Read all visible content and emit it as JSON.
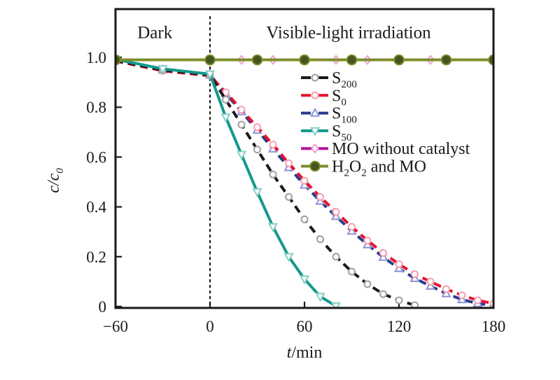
{
  "figure": {
    "background": "#ffffff",
    "text_color": "#1a1a1a"
  },
  "chart_data": {
    "type": "line",
    "title": "",
    "xlabel_parts": [
      {
        "t": "t",
        "italic": true
      },
      {
        "t": "/min",
        "italic": false
      }
    ],
    "ylabel_parts": [
      {
        "t": "c/c",
        "italic": true
      },
      {
        "t": "0",
        "italic": true,
        "sub": true
      }
    ],
    "xlim": [
      -60,
      180
    ],
    "ylim": [
      0,
      1.0
    ],
    "grid": false,
    "legend_position": "inside-upper-right",
    "x_ticks": [
      {
        "v": -60,
        "label": "−60"
      },
      {
        "v": 0,
        "label": "0"
      },
      {
        "v": 60,
        "label": "60"
      },
      {
        "v": 120,
        "label": "120"
      },
      {
        "v": 180,
        "label": "180"
      }
    ],
    "y_ticks": [
      {
        "v": 0,
        "label": "0"
      },
      {
        "v": 0.2,
        "label": "0.2"
      },
      {
        "v": 0.4,
        "label": "0.4"
      },
      {
        "v": 0.6,
        "label": "0.6"
      },
      {
        "v": 0.8,
        "label": "0.8"
      },
      {
        "v": 1.0,
        "label": "1.0"
      }
    ],
    "divider": {
      "t": 0,
      "style": "dotted",
      "color": "#1a1a1a"
    },
    "region_labels": [
      {
        "id": "dark",
        "text": "Dark",
        "t": -35,
        "c": 1.1
      },
      {
        "id": "light",
        "text": "Visible-light irradiation",
        "t": 88,
        "c": 1.1
      }
    ],
    "draw_order": [
      "s100",
      "s0",
      "s200",
      "s50",
      "mo",
      "h2o2"
    ],
    "series": [
      {
        "id": "s200",
        "name": "S200",
        "label_parts": [
          {
            "t": "S"
          },
          {
            "t": "200",
            "sub": true
          }
        ],
        "color": "#1a1a1a",
        "line": "dashed",
        "marker": "circle",
        "marker_stroke": "#a0a0a0",
        "marker_fill": "#ffffff",
        "x": [
          -60,
          -30,
          0,
          10,
          20,
          30,
          40,
          50,
          60,
          70,
          80,
          90,
          100,
          110,
          120,
          130
        ],
        "y": [
          0.988,
          0.949,
          0.929,
          0.83,
          0.73,
          0.63,
          0.53,
          0.44,
          0.35,
          0.27,
          0.2,
          0.14,
          0.09,
          0.05,
          0.025,
          0.005
        ]
      },
      {
        "id": "s0",
        "name": "S0",
        "label_parts": [
          {
            "t": "S"
          },
          {
            "t": "0",
            "sub": true
          }
        ],
        "color": "#e8112d",
        "line": "dashed",
        "marker": "circle",
        "marker_stroke": "#f59fb0",
        "marker_fill": "#ffffff",
        "x": [
          -60,
          -30,
          0,
          10,
          20,
          30,
          40,
          50,
          60,
          70,
          80,
          90,
          100,
          110,
          120,
          130,
          140,
          150,
          160,
          170,
          180
        ],
        "y": [
          0.985,
          0.946,
          0.926,
          0.86,
          0.79,
          0.72,
          0.65,
          0.575,
          0.505,
          0.44,
          0.38,
          0.32,
          0.265,
          0.215,
          0.17,
          0.13,
          0.1,
          0.07,
          0.045,
          0.025,
          0.012
        ]
      },
      {
        "id": "s100",
        "name": "S100",
        "label_parts": [
          {
            "t": "S"
          },
          {
            "t": "100",
            "sub": true
          }
        ],
        "color": "#283a8e",
        "line": "dashed",
        "marker": "triangle-up",
        "marker_stroke": "#8d93d2",
        "marker_fill": "#ffffff",
        "x": [
          -60,
          -30,
          0,
          10,
          20,
          30,
          40,
          50,
          60,
          70,
          80,
          90,
          100,
          110,
          120,
          130,
          140,
          150,
          160,
          170,
          180
        ],
        "y": [
          0.989,
          0.95,
          0.93,
          0.855,
          0.782,
          0.708,
          0.633,
          0.558,
          0.488,
          0.423,
          0.362,
          0.303,
          0.248,
          0.198,
          0.153,
          0.113,
          0.082,
          0.052,
          0.028,
          0.012,
          0.004
        ]
      },
      {
        "id": "s50",
        "name": "S50",
        "label_parts": [
          {
            "t": "S"
          },
          {
            "t": "50",
            "sub": true
          }
        ],
        "color": "#14988d",
        "line": "solid",
        "marker": "triangle-down",
        "marker_stroke": "#86cfc8",
        "marker_fill": "#ffffff",
        "x": [
          -60,
          -30,
          0,
          10,
          20,
          30,
          40,
          50,
          60,
          70,
          80
        ],
        "y": [
          0.992,
          0.954,
          0.933,
          0.76,
          0.61,
          0.46,
          0.32,
          0.2,
          0.11,
          0.04,
          0.002
        ]
      },
      {
        "id": "mo",
        "name": "MO without catalyst",
        "label_parts": [
          {
            "t": "MO without catalyst"
          }
        ],
        "color": "#b0189c",
        "line": "solid",
        "marker": "diamond",
        "marker_stroke": "#f0a3ce",
        "marker_fill": "#ffffff",
        "x": [
          -60,
          180
        ],
        "y": [
          0.99,
          0.99
        ],
        "marker_x": [
          20,
          40,
          60,
          80,
          100,
          120,
          140,
          180
        ],
        "marker_y": 0.99
      },
      {
        "id": "h2o2",
        "name": "H2O2 and MO",
        "label_parts": [
          {
            "t": "H"
          },
          {
            "t": "2",
            "sub": true
          },
          {
            "t": "O"
          },
          {
            "t": "2",
            "sub": true
          },
          {
            "t": " and MO"
          }
        ],
        "color": "#7d8d2b",
        "line": "solid",
        "marker": "dot",
        "marker_stroke": "#7d8d2b",
        "marker_fill": "#44551f",
        "x": [
          -60,
          180
        ],
        "y": [
          0.99,
          0.99
        ],
        "marker_x": [
          -60,
          0,
          30,
          60,
          90,
          120,
          150,
          180
        ],
        "marker_y": 0.99
      }
    ]
  }
}
